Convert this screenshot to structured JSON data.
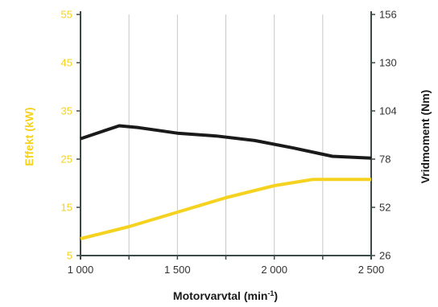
{
  "chart_data": {
    "type": "line",
    "xlabel_main": "Motorvarvtal (min",
    "xlabel_sup": "-1",
    "xlabel_end": ")",
    "ylabel_left": "Effekt (kW)",
    "ylabel_right": "Vridmoment (Nm)",
    "x_ticks": [
      1000,
      1250,
      1500,
      1750,
      2000,
      2250,
      2500
    ],
    "x_tick_labels": [
      "1 000",
      "",
      "1 500",
      "",
      "2 000",
      "",
      "2 500"
    ],
    "xlim": [
      1000,
      2500
    ],
    "y_left_ticks": [
      5,
      15,
      25,
      35,
      45,
      55
    ],
    "y_left_lim": [
      5,
      55
    ],
    "y_right_ticks": [
      26,
      52,
      78,
      104,
      130,
      156
    ],
    "y_right_lim": [
      26,
      156
    ],
    "grid": "vertical",
    "series": [
      {
        "axis": "right",
        "color": "#1a1a1a",
        "x": [
          1000,
          1100,
          1200,
          1300,
          1500,
          1700,
          1900,
          2100,
          2300,
          2500
        ],
        "y": [
          89,
          92.5,
          96,
          95,
          92,
          90.5,
          88,
          84,
          79.5,
          78.5
        ]
      },
      {
        "axis": "left",
        "color": "#f5d21f",
        "x": [
          1000,
          1250,
          1500,
          1750,
          2000,
          2200,
          2300,
          2500
        ],
        "y": [
          8.5,
          11,
          14,
          17,
          19.5,
          20.8,
          20.8,
          20.8
        ]
      }
    ],
    "colors": {
      "left_axis": "#f5d21f",
      "right_axis": "#333333",
      "grid": "#c8c8c8",
      "axis_line": "#3a4a48"
    }
  }
}
